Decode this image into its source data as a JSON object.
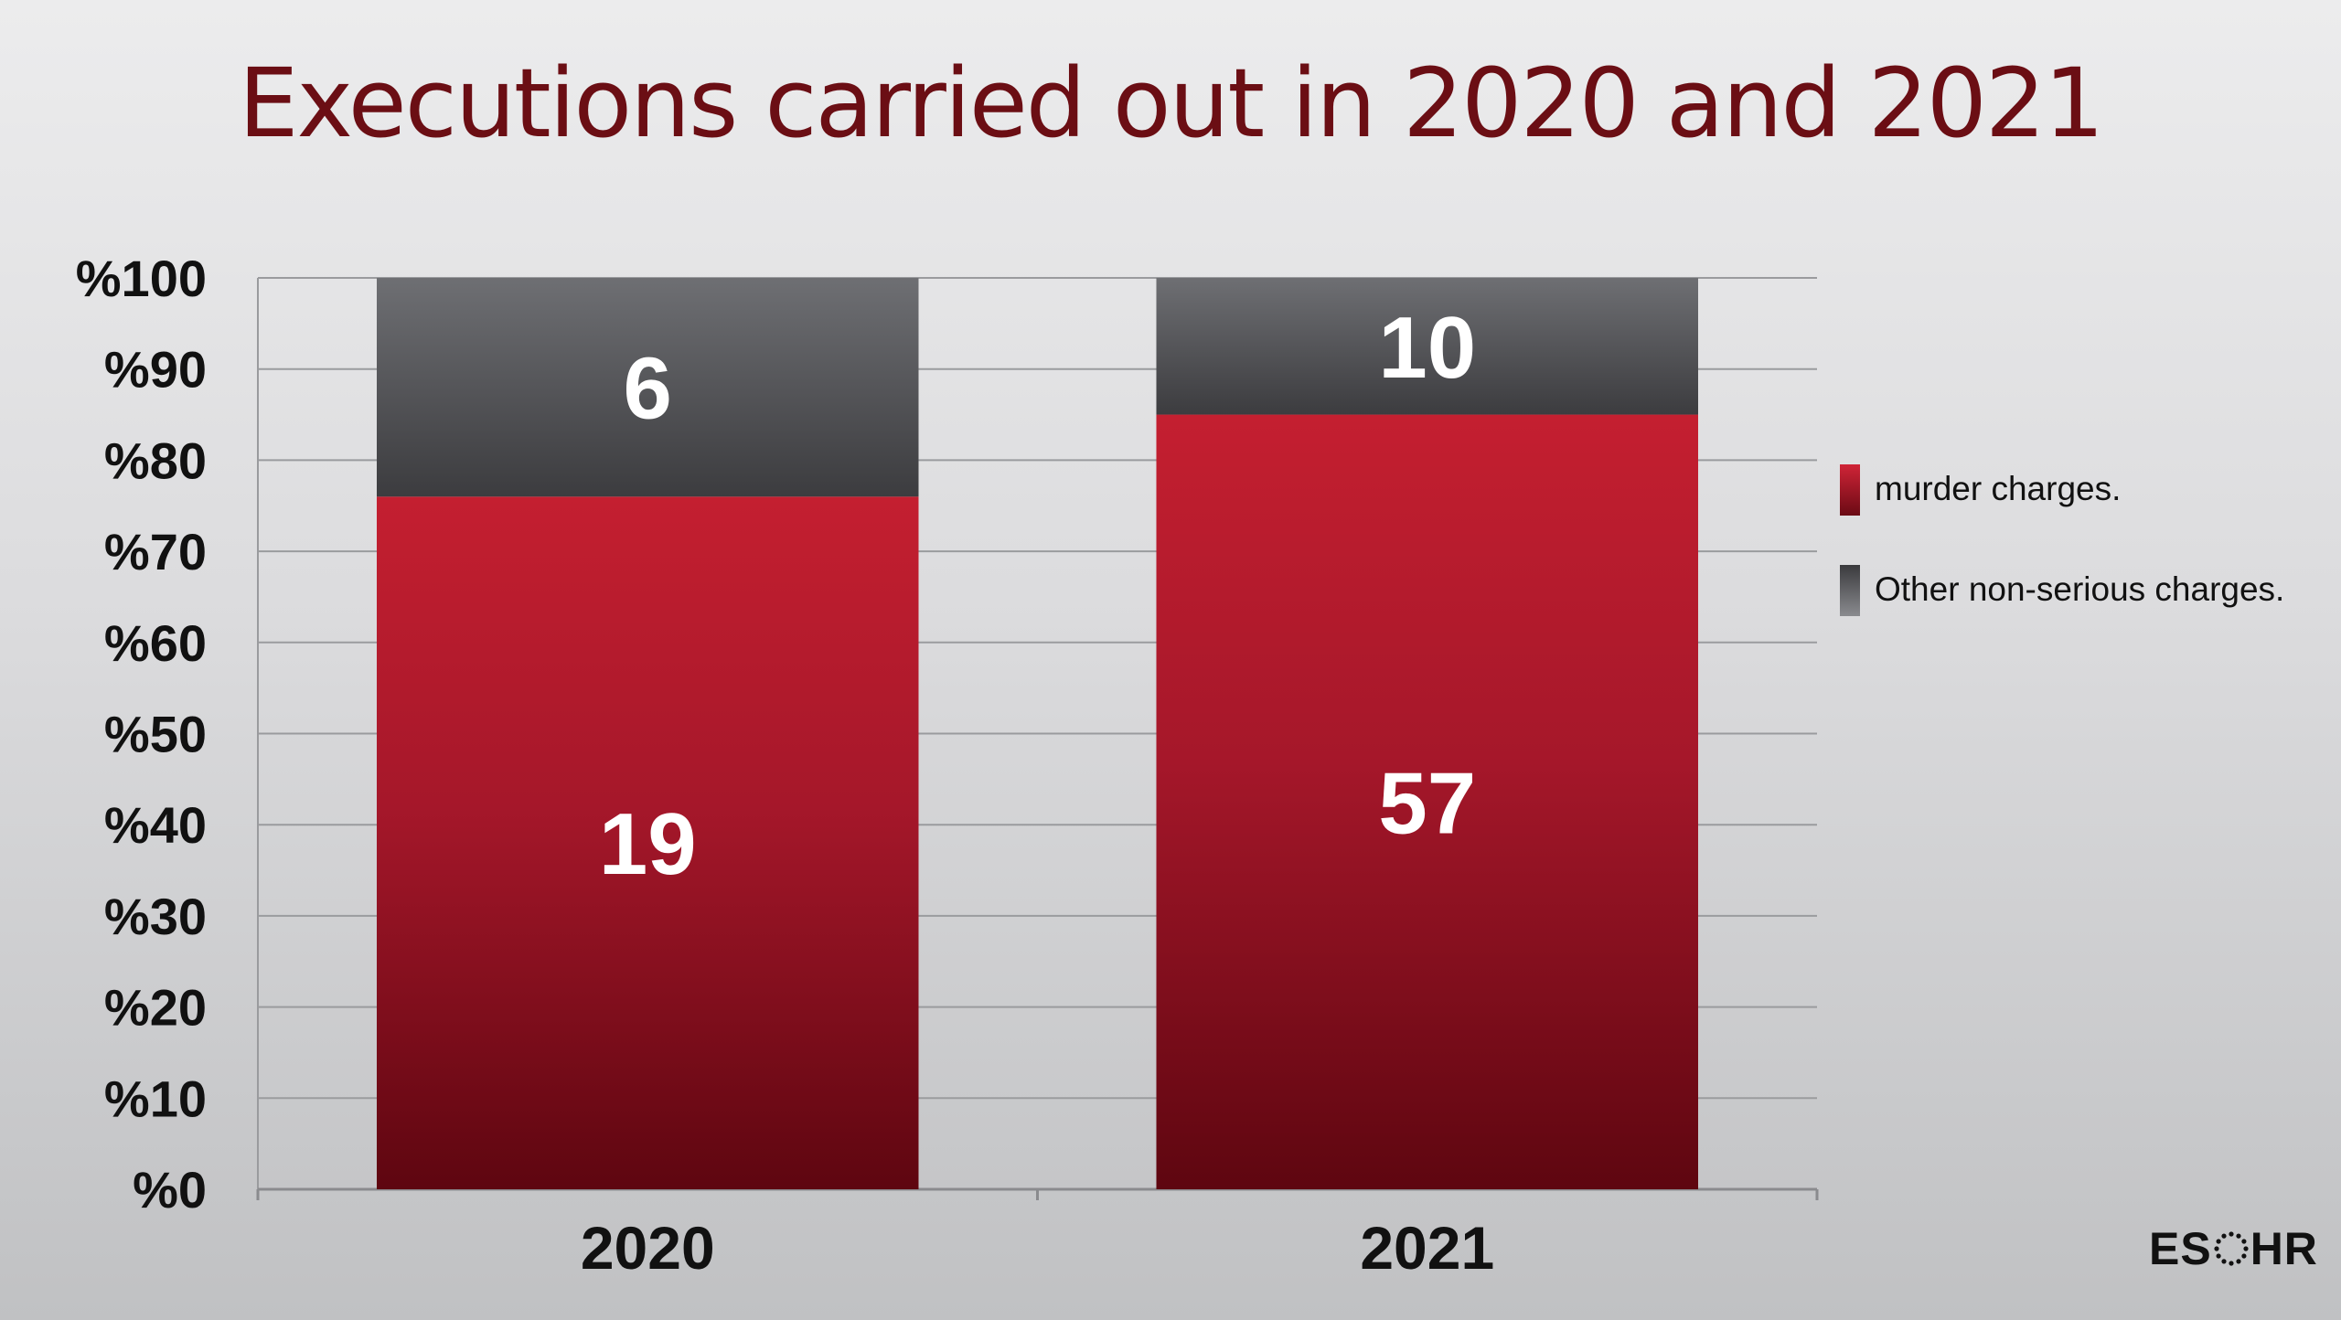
{
  "title": "Executions carried out in 2020 and 2021",
  "legend": {
    "items": [
      {
        "label": "murder charges.",
        "color": "#b81d2e"
      },
      {
        "label": "Other non-serious charges.",
        "color": "#505155"
      }
    ]
  },
  "logo": {
    "left_text": "ES",
    "right_text": "HR"
  },
  "chart_data": {
    "type": "bar",
    "stacked": true,
    "categories": [
      "2020",
      "2021"
    ],
    "ytick_labels": [
      "%0",
      "%10",
      "%20",
      "%30",
      "%40",
      "%50",
      "%60",
      "%70",
      "%80",
      "%90",
      "%100"
    ],
    "ylim": [
      0,
      100
    ],
    "grid": true,
    "legend_position": "right",
    "series": [
      {
        "name": "murder charges.",
        "color": "#b81d2e",
        "percent": [
          76,
          85
        ],
        "labels": [
          "19",
          "57"
        ]
      },
      {
        "name": "Other non-serious charges.",
        "color": "#505155",
        "percent": [
          24,
          15
        ],
        "labels": [
          "6",
          "10"
        ]
      }
    ]
  }
}
